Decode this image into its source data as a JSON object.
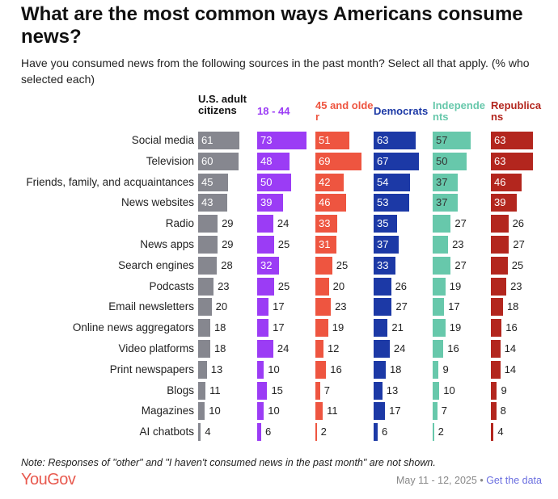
{
  "title": "What are the most common ways Americans consume news?",
  "subtitle": "Have you consumed news from the following sources in the past month? Select all that apply. (% who selected each)",
  "chart_data": {
    "type": "bar",
    "orientation": "horizontal",
    "categories": [
      "Social media",
      "Television",
      "Friends, family, and acquaintances",
      "News websites",
      "Radio",
      "News apps",
      "Search engines",
      "Podcasts",
      "Email newsletters",
      "Online news aggregators",
      "Video platforms",
      "Print newspapers",
      "Blogs",
      "Magazines",
      "AI chatbots"
    ],
    "series": [
      {
        "name": "U.S. adult citizens",
        "color": "#86878f",
        "values": [
          61,
          60,
          45,
          43,
          29,
          29,
          28,
          23,
          20,
          18,
          18,
          13,
          11,
          10,
          4
        ]
      },
      {
        "name": "18 - 44",
        "color": "#9b3cf5",
        "values": [
          73,
          48,
          50,
          39,
          24,
          25,
          32,
          25,
          17,
          17,
          24,
          10,
          15,
          10,
          6
        ]
      },
      {
        "name": "45 and older",
        "color": "#ee5540",
        "values": [
          51,
          69,
          42,
          46,
          33,
          31,
          25,
          20,
          23,
          19,
          12,
          16,
          7,
          11,
          2
        ]
      },
      {
        "name": "Democrats",
        "color": "#1c39a6",
        "values": [
          63,
          67,
          54,
          53,
          35,
          37,
          33,
          26,
          27,
          21,
          24,
          18,
          13,
          17,
          6
        ]
      },
      {
        "name": "Independents",
        "color": "#67c8ab",
        "values": [
          57,
          50,
          37,
          37,
          27,
          23,
          27,
          19,
          17,
          19,
          16,
          9,
          10,
          7,
          2
        ]
      },
      {
        "name": "Republicans",
        "color": "#b3261e",
        "values": [
          63,
          63,
          46,
          39,
          26,
          27,
          25,
          23,
          18,
          16,
          14,
          14,
          9,
          8,
          4
        ]
      }
    ],
    "unit": "%"
  },
  "note": "Note: Responses of \"other\" and \"I haven't consumed news in the past month\" are not shown.",
  "logo": "YouGov",
  "date": "May 11 - 12, 2025",
  "separator": "•",
  "link": "Get the data"
}
